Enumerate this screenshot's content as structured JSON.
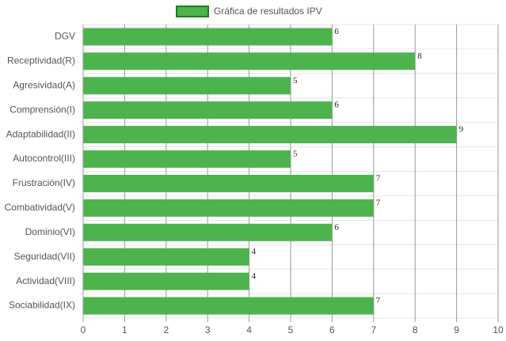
{
  "chart_data": {
    "type": "bar",
    "orientation": "horizontal",
    "categories": [
      "DGV",
      "Receptividad(R)",
      "Agresividad(A)",
      "Comprensión(I)",
      "Adaptabilidad(II)",
      "Autocontrol(III)",
      "Frustración(IV)",
      "Combatividad(V)",
      "Dominio(VI)",
      "Seguridad(VII)",
      "Actividad(VIII)",
      "Sociabilidad(IX)"
    ],
    "series": [
      {
        "name": "Gráfica de resultados IPV",
        "color": "#4db34d",
        "values": [
          6,
          8,
          5,
          6,
          9,
          5,
          7,
          7,
          6,
          4,
          4,
          7
        ]
      }
    ],
    "xlim": [
      0,
      10
    ],
    "xticks": [
      0,
      1,
      2,
      3,
      4,
      5,
      6,
      7,
      8,
      9,
      10
    ],
    "grid": true,
    "legend": "top"
  }
}
